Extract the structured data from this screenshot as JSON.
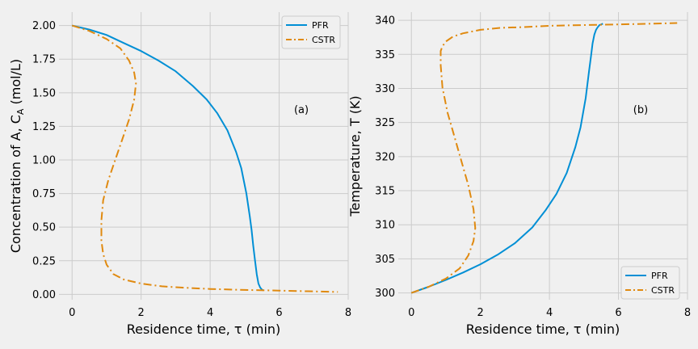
{
  "chart_data": [
    {
      "type": "line",
      "panel_label": "(a)",
      "xlabel": "Residence time, τ  (min)",
      "ylabel": "Concentration of A,  C",
      "ylabel_sub": "A",
      "ylabel_unit": " (mol/L)",
      "xlim": [
        -0.38,
        8.0
      ],
      "ylim": [
        -0.04,
        2.1
      ],
      "xticks": [
        0,
        2,
        4,
        6,
        8
      ],
      "xtick_labels": [
        "0",
        "2",
        "4",
        "6",
        "8"
      ],
      "yticks": [
        0.0,
        0.25,
        0.5,
        0.75,
        1.0,
        1.25,
        1.5,
        1.75,
        2.0
      ],
      "ytick_labels": [
        "0.00",
        "0.25",
        "0.50",
        "0.75",
        "1.00",
        "1.25",
        "1.50",
        "1.75",
        "2.00"
      ],
      "grid": true,
      "legend_position": "top-right",
      "series": [
        {
          "name": "PFR",
          "color": "#008fd5",
          "dash": "solid",
          "x": [
            0,
            0.5,
            1.0,
            1.5,
            2.0,
            2.5,
            3.0,
            3.5,
            3.9,
            4.2,
            4.5,
            4.75,
            4.9,
            5.05,
            5.15,
            5.2,
            5.25,
            5.3,
            5.35,
            5.4,
            5.45,
            5.5,
            5.55
          ],
          "y": [
            2.0,
            1.97,
            1.93,
            1.87,
            1.81,
            1.74,
            1.66,
            1.55,
            1.45,
            1.35,
            1.22,
            1.06,
            0.94,
            0.75,
            0.58,
            0.48,
            0.36,
            0.25,
            0.15,
            0.08,
            0.05,
            0.035,
            0.03
          ]
        },
        {
          "name": "CSTR",
          "color": "#e5ae38",
          "line_color": "#e08a10",
          "dash": "dashdot",
          "x": [
            0,
            0.5,
            1.0,
            1.4,
            1.65,
            1.8,
            1.85,
            1.8,
            1.65,
            1.45,
            1.25,
            1.05,
            0.9,
            0.85,
            0.85,
            0.9,
            1.0,
            1.2,
            1.5,
            2.0,
            2.6,
            3.2,
            4.0,
            5.0,
            6.0,
            7.0,
            7.7
          ],
          "y": [
            2.0,
            1.96,
            1.9,
            1.83,
            1.74,
            1.65,
            1.57,
            1.45,
            1.3,
            1.15,
            1.0,
            0.85,
            0.7,
            0.55,
            0.4,
            0.3,
            0.22,
            0.15,
            0.11,
            0.08,
            0.06,
            0.05,
            0.04,
            0.033,
            0.028,
            0.022,
            0.018
          ]
        }
      ]
    },
    {
      "type": "line",
      "panel_label": "(b)",
      "xlabel": "Residence time, τ  (min)",
      "ylabel": "Temperature,  T (K)",
      "xlim": [
        -0.38,
        8.0
      ],
      "ylim": [
        299.0,
        341.2
      ],
      "xticks": [
        0,
        2,
        4,
        6,
        8
      ],
      "xtick_labels": [
        "0",
        "2",
        "4",
        "6",
        "8"
      ],
      "yticks": [
        300,
        305,
        310,
        315,
        320,
        325,
        330,
        335,
        340
      ],
      "ytick_labels": [
        "300",
        "305",
        "310",
        "315",
        "320",
        "325",
        "330",
        "335",
        "340"
      ],
      "grid": true,
      "legend_position": "bottom-right",
      "series": [
        {
          "name": "PFR",
          "color": "#008fd5",
          "dash": "solid",
          "x": [
            0,
            0.5,
            1.0,
            1.5,
            2.0,
            2.5,
            3.0,
            3.5,
            3.9,
            4.2,
            4.5,
            4.75,
            4.9,
            5.05,
            5.15,
            5.2,
            5.25,
            5.3,
            5.35,
            5.4,
            5.45,
            5.5,
            5.55
          ],
          "y": [
            300.0,
            300.9,
            301.9,
            303.0,
            304.2,
            305.6,
            307.3,
            309.6,
            312.2,
            314.5,
            317.6,
            321.4,
            324.3,
            328.6,
            332.6,
            334.6,
            336.6,
            337.9,
            338.6,
            339.0,
            339.3,
            339.4,
            339.5
          ]
        },
        {
          "name": "CSTR",
          "color": "#e5ae38",
          "line_color": "#e08a10",
          "dash": "dashdot",
          "x": [
            0,
            0.5,
            1.0,
            1.4,
            1.65,
            1.8,
            1.85,
            1.8,
            1.65,
            1.45,
            1.25,
            1.05,
            0.9,
            0.85,
            0.85,
            0.9,
            1.0,
            1.2,
            1.5,
            2.0,
            2.6,
            3.2,
            4.0,
            5.0,
            6.0,
            7.0,
            7.7
          ],
          "y": [
            300.0,
            300.9,
            302.1,
            303.6,
            305.5,
            307.6,
            309.5,
            312.3,
            315.8,
            319.3,
            322.9,
            326.4,
            330.1,
            333.4,
            335.5,
            336.2,
            336.9,
            337.6,
            338.1,
            338.6,
            338.9,
            339.0,
            339.2,
            339.3,
            339.4,
            339.5,
            339.6
          ]
        }
      ]
    }
  ]
}
